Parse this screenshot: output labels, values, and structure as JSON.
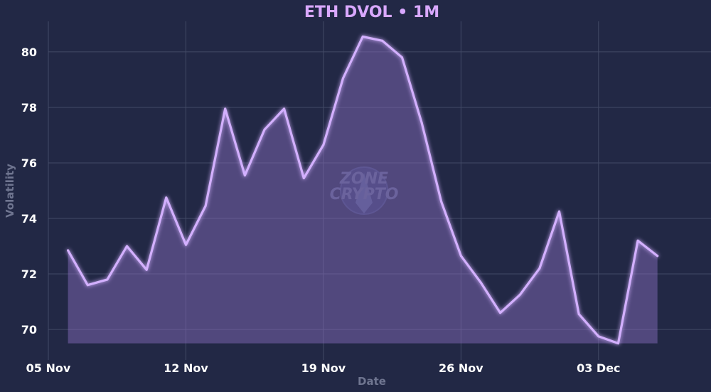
{
  "chart_data": {
    "type": "area",
    "title": "ETH DVOL • 1M",
    "xlabel": "Date",
    "ylabel": "Volatility",
    "watermark": [
      "ZONE",
      "CRYPTO"
    ],
    "x": [
      "2024-11-06",
      "2024-11-07",
      "2024-11-08",
      "2024-11-09",
      "2024-11-10",
      "2024-11-11",
      "2024-11-12",
      "2024-11-13",
      "2024-11-14",
      "2024-11-15",
      "2024-11-16",
      "2024-11-17",
      "2024-11-18",
      "2024-11-19",
      "2024-11-20",
      "2024-11-21",
      "2024-11-22",
      "2024-11-23",
      "2024-11-24",
      "2024-11-25",
      "2024-11-26",
      "2024-11-27",
      "2024-11-28",
      "2024-11-29",
      "2024-11-30",
      "2024-12-01",
      "2024-12-02",
      "2024-12-03",
      "2024-12-04",
      "2024-12-05",
      "2024-12-06"
    ],
    "series": [
      {
        "values": [
          72.85,
          71.6,
          71.8,
          73.0,
          72.15,
          74.75,
          73.05,
          74.45,
          77.95,
          75.55,
          77.2,
          77.95,
          75.45,
          76.65,
          79.05,
          80.55,
          80.4,
          79.8,
          77.45,
          74.6,
          72.65,
          71.7,
          70.6,
          71.25,
          72.2,
          74.25,
          70.55,
          69.75,
          69.5,
          73.2,
          72.65
        ]
      }
    ],
    "x_ticks": [
      "05 Nov",
      "12 Nov",
      "19 Nov",
      "26 Nov",
      "03 Dec"
    ],
    "y_ticks": [
      70,
      72,
      74,
      76,
      78,
      80
    ],
    "ylim": [
      68.9,
      81.1
    ],
    "area_baseline": 69.5,
    "grid": true,
    "colors": {
      "background": "#222845",
      "line": "#d3b0ff",
      "area_fill": "#8b6fc0",
      "grid": "#434a66",
      "title": "#d9a8ff",
      "tick_labels": "#ffffff",
      "axis_labels": "#6f7590"
    }
  }
}
